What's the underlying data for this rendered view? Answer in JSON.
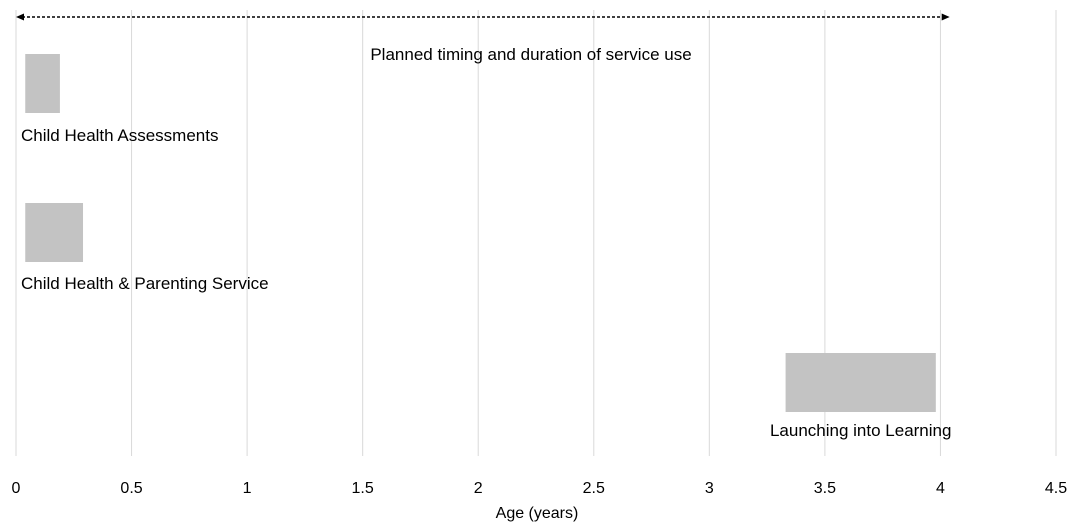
{
  "chart_data": {
    "type": "bar",
    "orientation": "horizontal",
    "xlabel": "Age (years)",
    "xlim": [
      0,
      4.5
    ],
    "xticks": [
      "0",
      "0.5",
      "1",
      "1.5",
      "2",
      "2.5",
      "3",
      "3.5",
      "4",
      "4.5"
    ],
    "grid": true,
    "bar_color": "#c3c3c3",
    "series": [
      {
        "label": "Child Health Assessments",
        "start": 0.04,
        "end": 0.19
      },
      {
        "label": "Child Health & Parenting Service",
        "start": 0.04,
        "end": 0.29
      },
      {
        "label": "Launching into Learning",
        "start": 3.33,
        "end": 3.98
      }
    ],
    "annotation": {
      "text": "Planned timing and duration of service use",
      "start": 0,
      "end": 4.04
    }
  }
}
